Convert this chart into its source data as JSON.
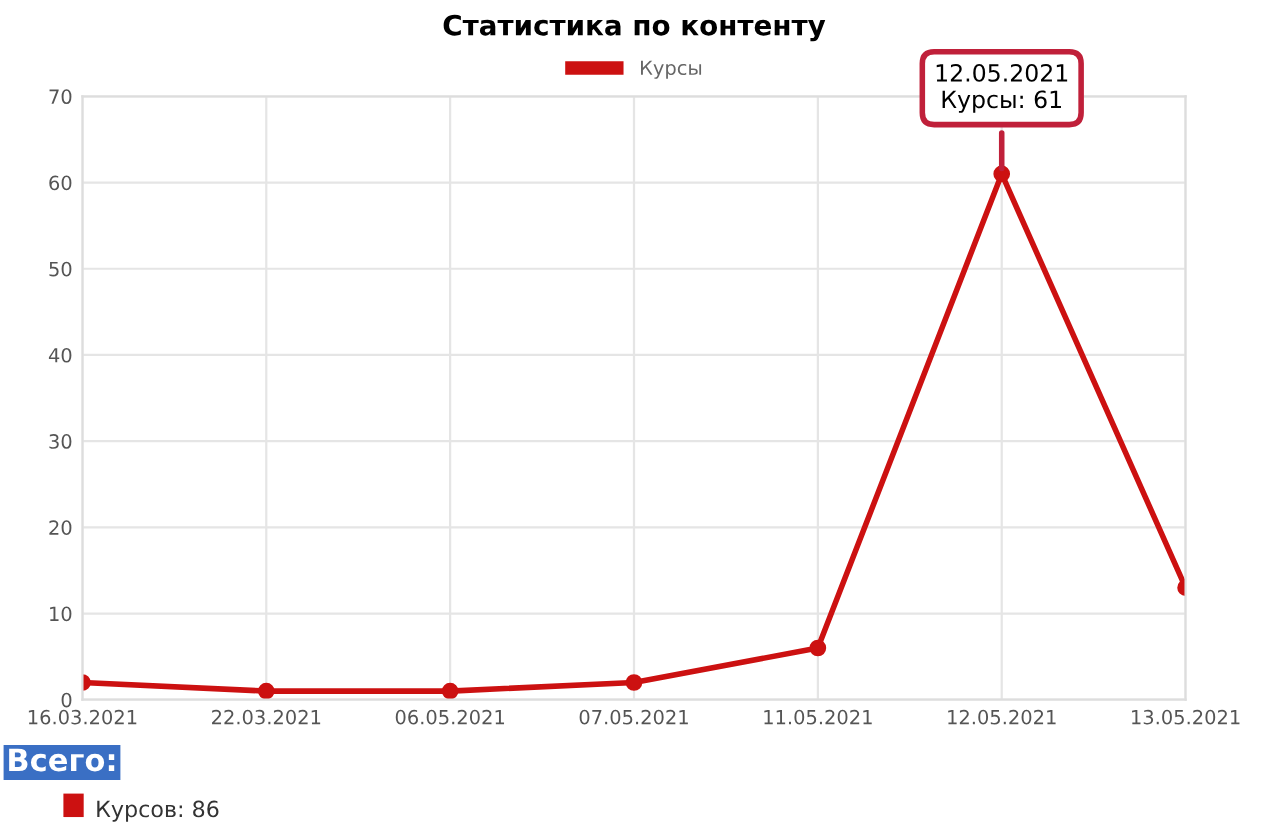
{
  "chart_data": {
    "type": "line",
    "title": "Статистика по контенту",
    "categories": [
      "16.03.2021",
      "22.03.2021",
      "06.05.2021",
      "07.05.2021",
      "11.05.2021",
      "12.05.2021",
      "13.05.2021"
    ],
    "series": [
      {
        "name": "Курсы",
        "color": "#cc1111",
        "values": [
          2,
          1,
          1,
          2,
          6,
          61,
          13
        ]
      }
    ],
    "ylim": [
      0,
      70
    ],
    "yticks": [
      0,
      10,
      20,
      30,
      40,
      50,
      60,
      70
    ],
    "grid": true,
    "legend": "top",
    "marker": "circle",
    "line_style": "solid",
    "annotations": [
      {
        "text": "12.05.2021\nКурсы: 61",
        "x": "12.05.2021",
        "y": 61
      },
      "Всего:",
      "Курсов: 86"
    ]
  }
}
